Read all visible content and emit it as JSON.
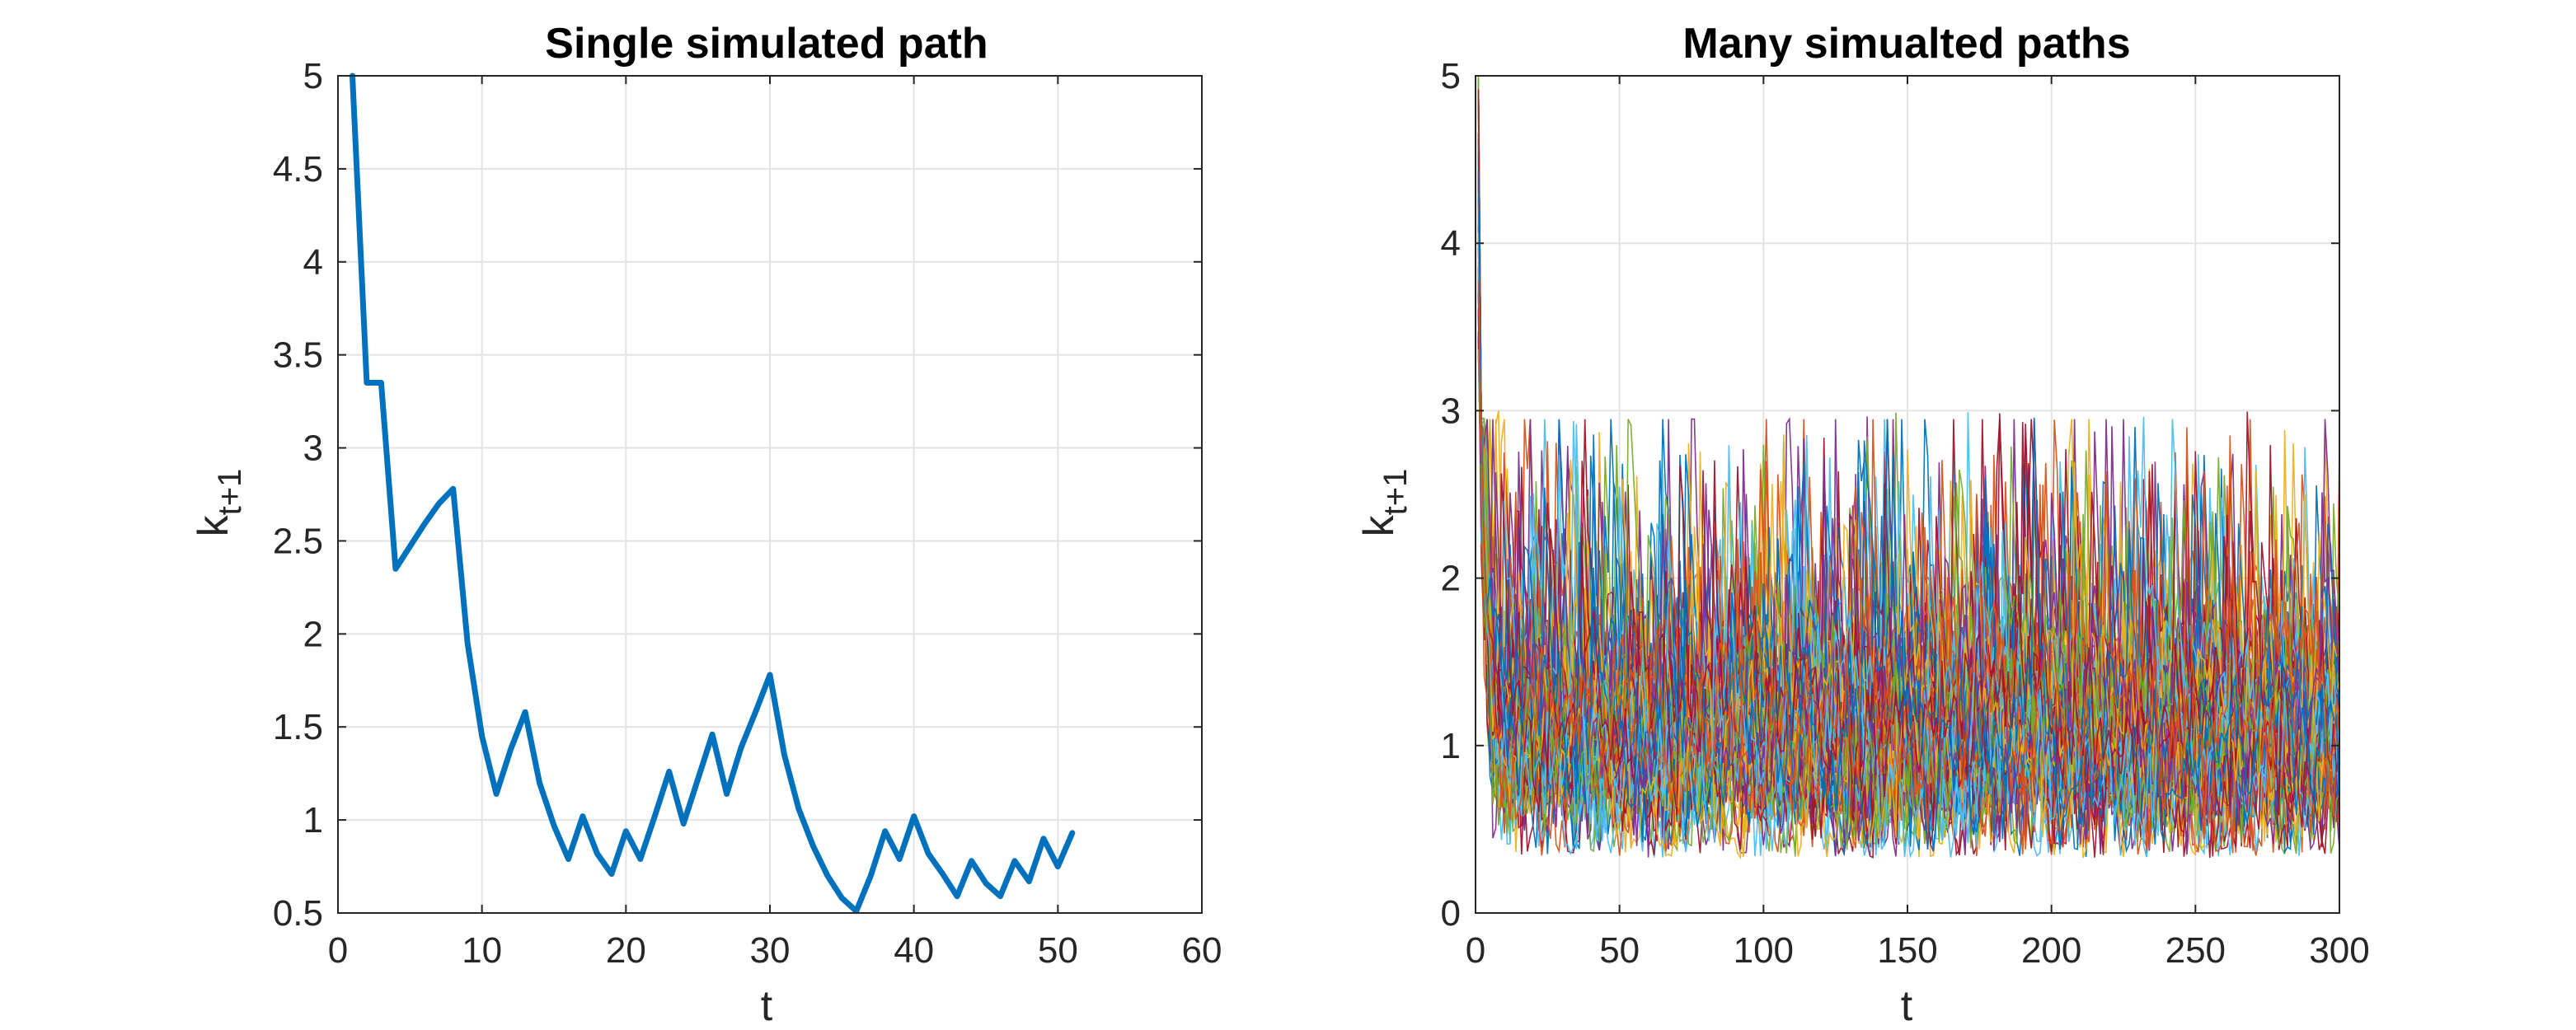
{
  "chart_data": [
    {
      "type": "line",
      "title": "Single simulated path",
      "xlabel": "t",
      "ylabel": "k",
      "ylabel_subscript": "t+1",
      "xlim": [
        0,
        60
      ],
      "ylim": [
        0.5,
        5
      ],
      "xticks": [
        "0",
        "10",
        "20",
        "30",
        "40",
        "50",
        "60"
      ],
      "yticks": [
        "0.5",
        "1",
        "1.5",
        "2",
        "2.5",
        "3",
        "3.5",
        "4",
        "4.5",
        "5"
      ],
      "grid": true,
      "color": "#0072BD",
      "series": [
        {
          "x": [
            1,
            2,
            3,
            4,
            5,
            6,
            7,
            8,
            9,
            10,
            11,
            12,
            13,
            14,
            15,
            16,
            17,
            18,
            19,
            20,
            21,
            22,
            23,
            24,
            25,
            26,
            27,
            28,
            29,
            30,
            31,
            32,
            33,
            34,
            35,
            36,
            37,
            38,
            39,
            40,
            41,
            42,
            43,
            44,
            45,
            46,
            47,
            48,
            49,
            50,
            51
          ],
          "values": [
            5.0,
            3.35,
            3.35,
            2.35,
            2.47,
            2.59,
            2.7,
            2.78,
            1.95,
            1.45,
            1.14,
            1.38,
            1.58,
            1.2,
            0.97,
            0.79,
            1.02,
            0.82,
            0.71,
            0.94,
            0.79,
            1.02,
            1.26,
            0.98,
            1.22,
            1.46,
            1.14,
            1.39,
            1.58,
            1.78,
            1.35,
            1.06,
            0.86,
            0.7,
            0.58,
            0.51,
            0.7,
            0.94,
            0.79,
            1.02,
            0.82,
            0.71,
            0.59,
            0.78,
            0.66,
            0.59,
            0.78,
            0.67,
            0.9,
            0.75,
            0.93
          ]
        }
      ]
    },
    {
      "type": "line",
      "title": "Many simualted paths",
      "xlabel": "t",
      "ylabel": "k",
      "ylabel_subscript": "t+1",
      "xlim": [
        0,
        300
      ],
      "ylim": [
        0,
        5
      ],
      "xticks": [
        "0",
        "50",
        "100",
        "150",
        "200",
        "250",
        "300"
      ],
      "yticks": [
        "0",
        "1",
        "2",
        "3",
        "4",
        "5"
      ],
      "grid": true,
      "num_paths": 100,
      "path_length": 300,
      "start_value": 5,
      "colors": [
        "#0072BD",
        "#D95319",
        "#EDB120",
        "#7E2F8E",
        "#77AC30",
        "#4DBEEE",
        "#A2142F"
      ]
    }
  ]
}
